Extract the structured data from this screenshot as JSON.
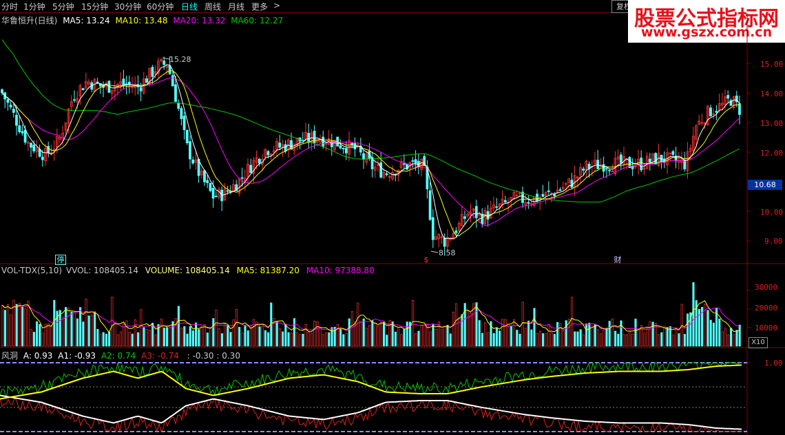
{
  "toolbar": {
    "periods": [
      "分时",
      "1分钟",
      "5分钟",
      "15分钟",
      "30分钟",
      "60分钟",
      "日线",
      "周线",
      "月线",
      "更多"
    ],
    "active": "日线",
    "more_arrow": ">",
    "restore_label": "复权"
  },
  "watermark": {
    "line1": "股票公式指标网",
    "line2": "www.gszx.com.cn"
  },
  "main_panel": {
    "stock_title": "华鲁恒升(日线)",
    "ma5": "MA5: 13.24",
    "ma10": "MA10: 13.48",
    "ma20": "MA20: 13.32",
    "ma60": "MA60: 12.27",
    "high_label": "15.28",
    "low_label": "8.58",
    "current_price": "10.68",
    "y_ticks": [
      "15.00",
      "14.00",
      "13.00",
      "12.00",
      "11.00",
      "10.00",
      "9.00"
    ],
    "markers": [
      {
        "text": "停"
      },
      {
        "text": "$"
      },
      {
        "text": "财"
      }
    ]
  },
  "volume_panel": {
    "title": "VOL-TDX(5,10)",
    "vvol": "VVOL: 108405.14",
    "volume": "VOLUME: 108405.14",
    "ma5": "MA5: 81387.20",
    "ma10": "MA10: 97388.80",
    "y_ticks": [
      "30000",
      "20000",
      "10000"
    ],
    "unit_label": "X10"
  },
  "indicator_panel": {
    "title": "风洞",
    "a": "A: 0.93",
    "a1": "A1: -0.93",
    "a2": "A2: 0.74",
    "a3": "A3: -0.74",
    "extra": ": -0.30 : 0.30",
    "y_ticks": [
      "1.00"
    ]
  },
  "colors": {
    "up": "#ff3232",
    "down": "#54ffff",
    "ma5": "#ffffff",
    "ma10": "#ffff00",
    "ma20": "#ff00ff",
    "ma60": "#00c800",
    "axis": "#8b0000",
    "tick_text": "#e02020"
  }
}
